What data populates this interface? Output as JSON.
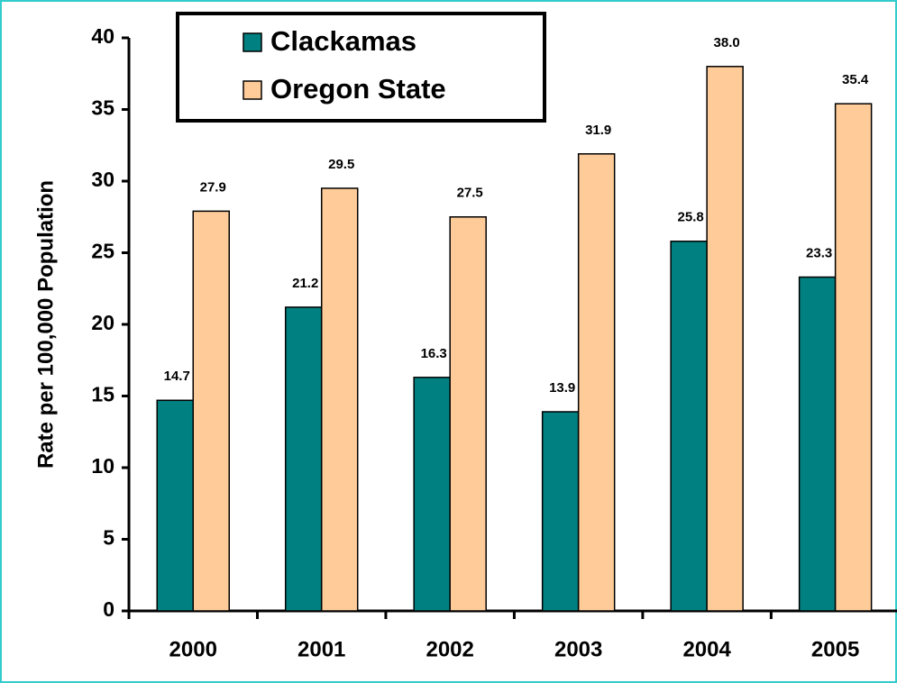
{
  "chart_data": {
    "type": "bar",
    "y_label": "Rate per 100,000 Population",
    "categories": [
      "2000",
      "2001",
      "2002",
      "2003",
      "2004",
      "2005"
    ],
    "series": [
      {
        "name": "Clackamas",
        "color": "#008080",
        "values": [
          14.7,
          21.2,
          16.3,
          13.9,
          25.8,
          23.3
        ],
        "value_labels": [
          "14.7",
          "21.2",
          "16.3",
          "13.9",
          "25.8",
          "23.3"
        ]
      },
      {
        "name": "Oregon State",
        "color": "#ffcc99",
        "values": [
          27.9,
          29.5,
          27.5,
          31.9,
          38.0,
          35.4
        ],
        "value_labels": [
          "27.9",
          "29.5",
          "27.5",
          "31.9",
          "38.0",
          "35.4"
        ]
      }
    ],
    "ylim": [
      0,
      40
    ],
    "yticks": [
      0,
      5,
      10,
      15,
      20,
      25,
      30,
      35,
      40
    ],
    "legend": "top-left"
  }
}
